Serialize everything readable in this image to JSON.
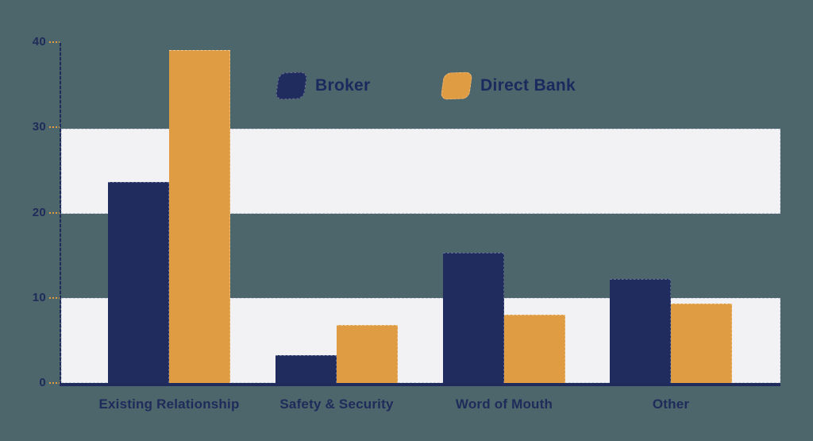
{
  "chart_data": {
    "type": "bar",
    "title": "",
    "categories": [
      "Existing Relationship",
      "Safety & Security",
      "Word of Mouth",
      "Other"
    ],
    "series": [
      {
        "name": "Broker",
        "color": "#202c5e",
        "values": [
          23.6,
          3.3,
          15.3,
          12.2
        ]
      },
      {
        "name": "Direct Bank",
        "color": "#e09c42",
        "values": [
          39.1,
          6.8,
          8.0,
          9.3
        ]
      }
    ],
    "xlabel": "",
    "ylabel": "",
    "ylim": [
      0,
      40
    ],
    "yticks": [
      0,
      10,
      20,
      30,
      40
    ],
    "grid": "alternating horizontal bands at 0-10 and 20-30",
    "legend_position": "top-center"
  },
  "legend": {
    "items": [
      {
        "label": "Broker",
        "color": "#202c5e"
      },
      {
        "label": "Direct Bank",
        "color": "#e09c42"
      }
    ]
  },
  "colors": {
    "background": "#4c666b",
    "band": "#f2f1f3",
    "axis": "#1f2b5a",
    "tick_dash": "#e09c42",
    "text": "#1f2b5a"
  }
}
